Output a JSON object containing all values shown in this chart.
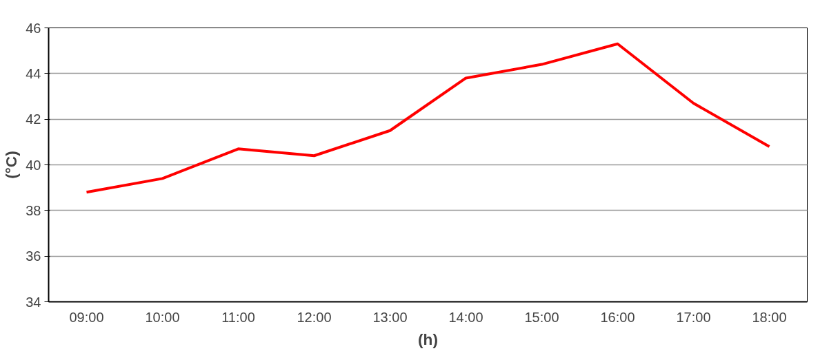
{
  "chart_data": {
    "type": "line",
    "xlabel": "(h)",
    "ylabel": "(°C)",
    "categories": [
      "09:00",
      "10:00",
      "11:00",
      "12:00",
      "13:00",
      "14:00",
      "15:00",
      "16:00",
      "17:00",
      "18:00"
    ],
    "series": [
      {
        "color": "#ff0000",
        "values": [
          38.8,
          39.4,
          40.7,
          40.4,
          41.5,
          43.8,
          44.4,
          45.3,
          42.7,
          40.8
        ]
      }
    ],
    "ylim": [
      34,
      46
    ],
    "yticks": [
      34,
      36,
      38,
      40,
      42,
      44,
      46
    ],
    "grid": "y",
    "marker": "none",
    "line_style": "solid"
  }
}
